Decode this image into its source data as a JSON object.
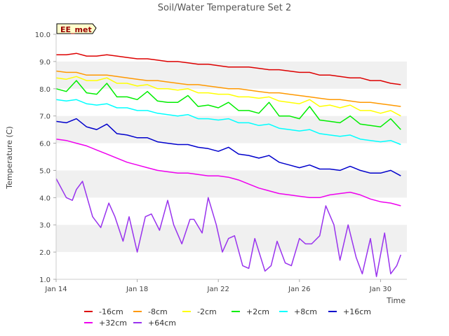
{
  "chart_data": {
    "type": "line",
    "title": "Soil/Water Temperature Set 2",
    "xlabel": "Time",
    "ylabel": "Temperature (C)",
    "station_badge": "EE_met",
    "ylim": [
      1.0,
      10.0
    ],
    "xlim": [
      14.0,
      31.3
    ],
    "yticks": [
      "1.0",
      "2.0",
      "3.0",
      "4.0",
      "5.0",
      "6.0",
      "7.0",
      "8.0",
      "9.0",
      "10.0"
    ],
    "xticks": [
      {
        "day": 14,
        "label": "Jan 14"
      },
      {
        "day": 18,
        "label": "Jan 18"
      },
      {
        "day": 22,
        "label": "Jan 22"
      },
      {
        "day": 26,
        "label": "Jan 26"
      },
      {
        "day": 30,
        "label": "Jan 30"
      }
    ],
    "grid": "alternating horizontal bands",
    "legend_position": "bottom",
    "series": [
      {
        "name": "-16cm",
        "color": "#dd0000",
        "x": [
          14.0,
          14.5,
          15.0,
          15.5,
          16.0,
          16.5,
          17.0,
          17.5,
          18.0,
          18.5,
          19.0,
          19.5,
          20.0,
          20.5,
          21.0,
          21.5,
          22.0,
          22.5,
          23.0,
          23.5,
          24.0,
          24.5,
          25.0,
          25.5,
          26.0,
          26.5,
          27.0,
          27.5,
          28.0,
          28.5,
          29.0,
          29.5,
          30.0,
          30.5,
          31.0
        ],
        "y": [
          9.25,
          9.25,
          9.3,
          9.2,
          9.2,
          9.25,
          9.2,
          9.15,
          9.1,
          9.1,
          9.05,
          9.0,
          9.0,
          8.95,
          8.9,
          8.9,
          8.85,
          8.8,
          8.8,
          8.8,
          8.75,
          8.7,
          8.7,
          8.65,
          8.6,
          8.6,
          8.5,
          8.5,
          8.45,
          8.4,
          8.4,
          8.3,
          8.3,
          8.2,
          8.15
        ]
      },
      {
        "name": "-8cm",
        "color": "#ff9900",
        "x": [
          14.0,
          14.5,
          15.0,
          15.5,
          16.0,
          16.5,
          17.0,
          17.5,
          18.0,
          18.5,
          19.0,
          19.5,
          20.0,
          20.5,
          21.0,
          21.5,
          22.0,
          22.5,
          23.0,
          23.5,
          24.0,
          24.5,
          25.0,
          25.5,
          26.0,
          26.5,
          27.0,
          27.5,
          28.0,
          28.5,
          29.0,
          29.5,
          30.0,
          30.5,
          31.0
        ],
        "y": [
          8.65,
          8.6,
          8.6,
          8.5,
          8.5,
          8.5,
          8.45,
          8.4,
          8.35,
          8.3,
          8.3,
          8.25,
          8.2,
          8.15,
          8.15,
          8.1,
          8.05,
          8.0,
          8.0,
          7.95,
          7.9,
          7.85,
          7.85,
          7.8,
          7.75,
          7.7,
          7.65,
          7.6,
          7.6,
          7.55,
          7.5,
          7.5,
          7.45,
          7.4,
          7.35
        ]
      },
      {
        "name": "-2cm",
        "color": "#ffff00",
        "x": [
          14.0,
          14.5,
          15.0,
          15.5,
          16.0,
          16.5,
          17.0,
          17.5,
          18.0,
          18.5,
          19.0,
          19.5,
          20.0,
          20.5,
          21.0,
          21.5,
          22.0,
          22.5,
          23.0,
          23.5,
          24.0,
          24.5,
          25.0,
          25.5,
          26.0,
          26.5,
          27.0,
          27.5,
          28.0,
          28.5,
          29.0,
          29.5,
          30.0,
          30.5,
          31.0
        ],
        "y": [
          8.4,
          8.35,
          8.45,
          8.3,
          8.3,
          8.4,
          8.2,
          8.2,
          8.1,
          8.15,
          8.0,
          8.0,
          7.95,
          8.0,
          7.85,
          7.85,
          7.8,
          7.8,
          7.7,
          7.7,
          7.65,
          7.7,
          7.55,
          7.5,
          7.45,
          7.6,
          7.35,
          7.4,
          7.3,
          7.4,
          7.2,
          7.2,
          7.1,
          7.2,
          7.0
        ]
      },
      {
        "name": "+2cm",
        "color": "#00ee00",
        "x": [
          14.0,
          14.5,
          15.0,
          15.5,
          16.0,
          16.5,
          17.0,
          17.5,
          18.0,
          18.5,
          19.0,
          19.5,
          20.0,
          20.5,
          21.0,
          21.5,
          22.0,
          22.5,
          23.0,
          23.5,
          24.0,
          24.5,
          25.0,
          25.5,
          26.0,
          26.5,
          27.0,
          27.5,
          28.0,
          28.5,
          29.0,
          29.5,
          30.0,
          30.5,
          31.0
        ],
        "y": [
          8.0,
          7.9,
          8.3,
          7.85,
          7.8,
          8.2,
          7.7,
          7.7,
          7.6,
          7.9,
          7.55,
          7.5,
          7.5,
          7.75,
          7.35,
          7.4,
          7.3,
          7.5,
          7.2,
          7.2,
          7.1,
          7.5,
          7.0,
          7.0,
          6.9,
          7.35,
          6.85,
          6.8,
          6.75,
          7.0,
          6.7,
          6.65,
          6.6,
          6.9,
          6.5
        ]
      },
      {
        "name": "+8cm",
        "color": "#00ffff",
        "x": [
          14.0,
          14.5,
          15.0,
          15.5,
          16.0,
          16.5,
          17.0,
          17.5,
          18.0,
          18.5,
          19.0,
          19.5,
          20.0,
          20.5,
          21.0,
          21.5,
          22.0,
          22.5,
          23.0,
          23.5,
          24.0,
          24.5,
          25.0,
          25.5,
          26.0,
          26.5,
          27.0,
          27.5,
          28.0,
          28.5,
          29.0,
          29.5,
          30.0,
          30.5,
          31.0
        ],
        "y": [
          7.6,
          7.55,
          7.6,
          7.45,
          7.4,
          7.45,
          7.3,
          7.3,
          7.2,
          7.2,
          7.1,
          7.05,
          7.0,
          7.05,
          6.9,
          6.9,
          6.85,
          6.9,
          6.75,
          6.75,
          6.65,
          6.7,
          6.55,
          6.5,
          6.45,
          6.5,
          6.35,
          6.3,
          6.25,
          6.3,
          6.15,
          6.1,
          6.05,
          6.1,
          5.95
        ]
      },
      {
        "name": "+16cm",
        "color": "#0000cc",
        "x": [
          14.0,
          14.5,
          15.0,
          15.5,
          16.0,
          16.5,
          17.0,
          17.5,
          18.0,
          18.5,
          19.0,
          19.5,
          20.0,
          20.5,
          21.0,
          21.5,
          22.0,
          22.5,
          23.0,
          23.5,
          24.0,
          24.5,
          25.0,
          25.5,
          26.0,
          26.5,
          27.0,
          27.5,
          28.0,
          28.5,
          29.0,
          29.5,
          30.0,
          30.5,
          31.0
        ],
        "y": [
          6.8,
          6.75,
          6.9,
          6.6,
          6.5,
          6.7,
          6.35,
          6.3,
          6.2,
          6.2,
          6.05,
          6.0,
          5.95,
          5.95,
          5.85,
          5.8,
          5.7,
          5.85,
          5.6,
          5.55,
          5.45,
          5.55,
          5.3,
          5.2,
          5.1,
          5.2,
          5.05,
          5.05,
          5.0,
          5.15,
          5.0,
          4.9,
          4.9,
          5.0,
          4.8
        ]
      },
      {
        "name": "+32cm",
        "color": "#ee00ee",
        "x": [
          14.0,
          14.5,
          15.0,
          15.5,
          16.0,
          16.5,
          17.0,
          17.5,
          18.0,
          18.5,
          19.0,
          19.5,
          20.0,
          20.5,
          21.0,
          21.5,
          22.0,
          22.5,
          23.0,
          23.5,
          24.0,
          24.5,
          25.0,
          25.5,
          26.0,
          26.5,
          27.0,
          27.5,
          28.0,
          28.5,
          29.0,
          29.5,
          30.0,
          30.5,
          31.0
        ],
        "y": [
          6.15,
          6.1,
          6.0,
          5.9,
          5.75,
          5.6,
          5.45,
          5.3,
          5.2,
          5.1,
          5.0,
          4.95,
          4.9,
          4.9,
          4.85,
          4.8,
          4.8,
          4.75,
          4.65,
          4.5,
          4.35,
          4.25,
          4.15,
          4.1,
          4.05,
          4.0,
          4.0,
          4.1,
          4.15,
          4.2,
          4.1,
          3.95,
          3.85,
          3.8,
          3.7
        ]
      },
      {
        "name": "+64cm",
        "color": "#9933ee",
        "x": [
          14.0,
          14.5,
          14.8,
          15.0,
          15.3,
          15.8,
          16.2,
          16.6,
          16.9,
          17.3,
          17.6,
          18.0,
          18.4,
          18.7,
          19.1,
          19.5,
          19.8,
          20.2,
          20.6,
          20.8,
          21.2,
          21.5,
          21.9,
          22.2,
          22.5,
          22.8,
          23.2,
          23.5,
          23.8,
          24.3,
          24.6,
          24.9,
          25.3,
          25.6,
          26.0,
          26.3,
          26.6,
          27.0,
          27.3,
          27.7,
          28.0,
          28.4,
          28.8,
          29.1,
          29.5,
          29.8,
          30.2,
          30.5,
          30.8,
          31.0
        ],
        "y": [
          4.7,
          4.0,
          3.9,
          4.3,
          4.6,
          3.3,
          2.9,
          3.8,
          3.3,
          2.4,
          3.3,
          2.0,
          3.3,
          3.4,
          2.8,
          3.9,
          3.0,
          2.3,
          3.2,
          3.2,
          2.7,
          4.0,
          3.0,
          2.0,
          2.5,
          2.6,
          1.5,
          1.4,
          2.5,
          1.3,
          1.5,
          2.4,
          1.6,
          1.5,
          2.5,
          2.3,
          2.3,
          2.6,
          3.7,
          3.0,
          1.7,
          3.0,
          1.8,
          1.2,
          2.5,
          1.1,
          2.7,
          1.2,
          1.5,
          1.9
        ]
      }
    ]
  }
}
